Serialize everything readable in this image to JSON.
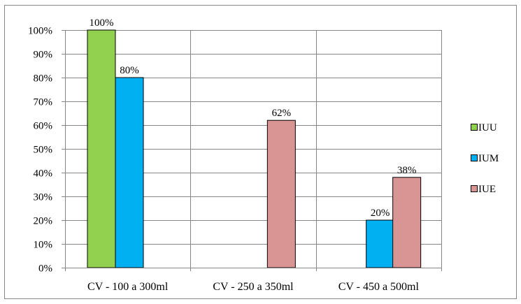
{
  "chart_data": {
    "type": "bar",
    "categories": [
      "CV - 100 a 300ml",
      "CV - 250 a 350ml",
      "CV - 450 a 500ml"
    ],
    "series": [
      {
        "name": "IUU",
        "values": [
          100,
          null,
          null
        ],
        "labels": [
          "100%",
          "",
          ""
        ],
        "color": "#92D050"
      },
      {
        "name": "IUM",
        "values": [
          80,
          null,
          20
        ],
        "labels": [
          "80%",
          "",
          "20%"
        ],
        "color": "#00B0F0"
      },
      {
        "name": "IUE",
        "values": [
          null,
          62,
          38
        ],
        "labels": [
          "",
          "62%",
          "38%"
        ],
        "color": "#D99594"
      }
    ],
    "y_ticks": [
      "0%",
      "10%",
      "20%",
      "30%",
      "40%",
      "50%",
      "60%",
      "70%",
      "80%",
      "90%",
      "100%"
    ],
    "ylim": [
      0,
      100
    ],
    "grid": true,
    "legend_position": "right",
    "title": "",
    "xlabel": "",
    "ylabel": ""
  }
}
